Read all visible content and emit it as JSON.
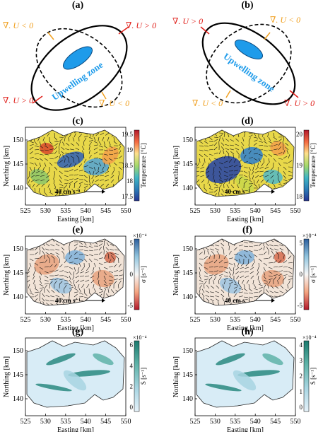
{
  "panels": {
    "a": {
      "label": "(a)",
      "div_pos": "∇. U > 0",
      "div_neg": "∇. U < 0",
      "zone": "Upwelling zone"
    },
    "b": {
      "label": "(b)",
      "div_pos": "∇. U > 0",
      "div_neg": "∇. U < 0",
      "zone": "Upwelling zone"
    },
    "c": {
      "label": "(c)"
    },
    "d": {
      "label": "(d)"
    },
    "e": {
      "label": "(e)"
    },
    "f": {
      "label": "(f)"
    },
    "g": {
      "label": "(g)"
    },
    "h": {
      "label": "(h)"
    }
  },
  "axes": {
    "xlabel": "Easting [km]",
    "ylabel": "Northing [km]",
    "xticks": [
      "525",
      "530",
      "535",
      "540",
      "545",
      "550"
    ],
    "yticks": [
      "150",
      "145",
      "140"
    ]
  },
  "scale_arrow": "40 cm s⁻¹",
  "colorbars": {
    "c": {
      "title": "Temperature [°C]",
      "ticks": [
        "19.5",
        "19",
        "18.5",
        "18",
        "17.5"
      ],
      "colors": [
        "#b2182b",
        "#f46d43",
        "#fee08b",
        "#a6d96a",
        "#41b6c4",
        "#2c7fb8",
        "#253494"
      ]
    },
    "d": {
      "title": "Temperature [°C]",
      "ticks": [
        "20",
        "19",
        "18"
      ],
      "colors": [
        "#b2182b",
        "#f46d43",
        "#fee08b",
        "#a6d96a",
        "#41b6c4",
        "#2c7fb8",
        "#253494"
      ]
    },
    "e": {
      "title": "σ [s⁻¹]",
      "exponent": "×10⁻⁴",
      "ticks": [
        "5",
        "0",
        "-5"
      ],
      "colors": [
        "#2c5f9e",
        "#92c5de",
        "#f7f7f7",
        "#f4a582",
        "#b2182b"
      ]
    },
    "f": {
      "title": "σ [s⁻¹]",
      "exponent": "×10⁻⁴",
      "ticks": [
        "5",
        "0",
        "-5"
      ],
      "colors": [
        "#2c5f9e",
        "#92c5de",
        "#f7f7f7",
        "#f4a582",
        "#b2182b"
      ]
    },
    "g": {
      "title": "S [s⁻¹]",
      "exponent": "×10⁻⁴",
      "ticks": [
        "6",
        "4",
        "2",
        "0"
      ],
      "colors": [
        "#1b7a6e",
        "#5fb3a8",
        "#a8d5e2",
        "#e6f2fa"
      ]
    },
    "h": {
      "title": "S [s⁻¹]",
      "exponent": "×10⁻⁴",
      "ticks": [
        "4",
        "3",
        "2",
        "1",
        "0"
      ],
      "colors": [
        "#1b7a6e",
        "#5fb3a8",
        "#a8d5e2",
        "#e6f2fa"
      ]
    }
  },
  "colors": {
    "pos_arrow": "#e0201b",
    "neg_arrow": "#f0a020",
    "zone_fill": "#1e9bea",
    "zone_text": "#1e9bea"
  }
}
